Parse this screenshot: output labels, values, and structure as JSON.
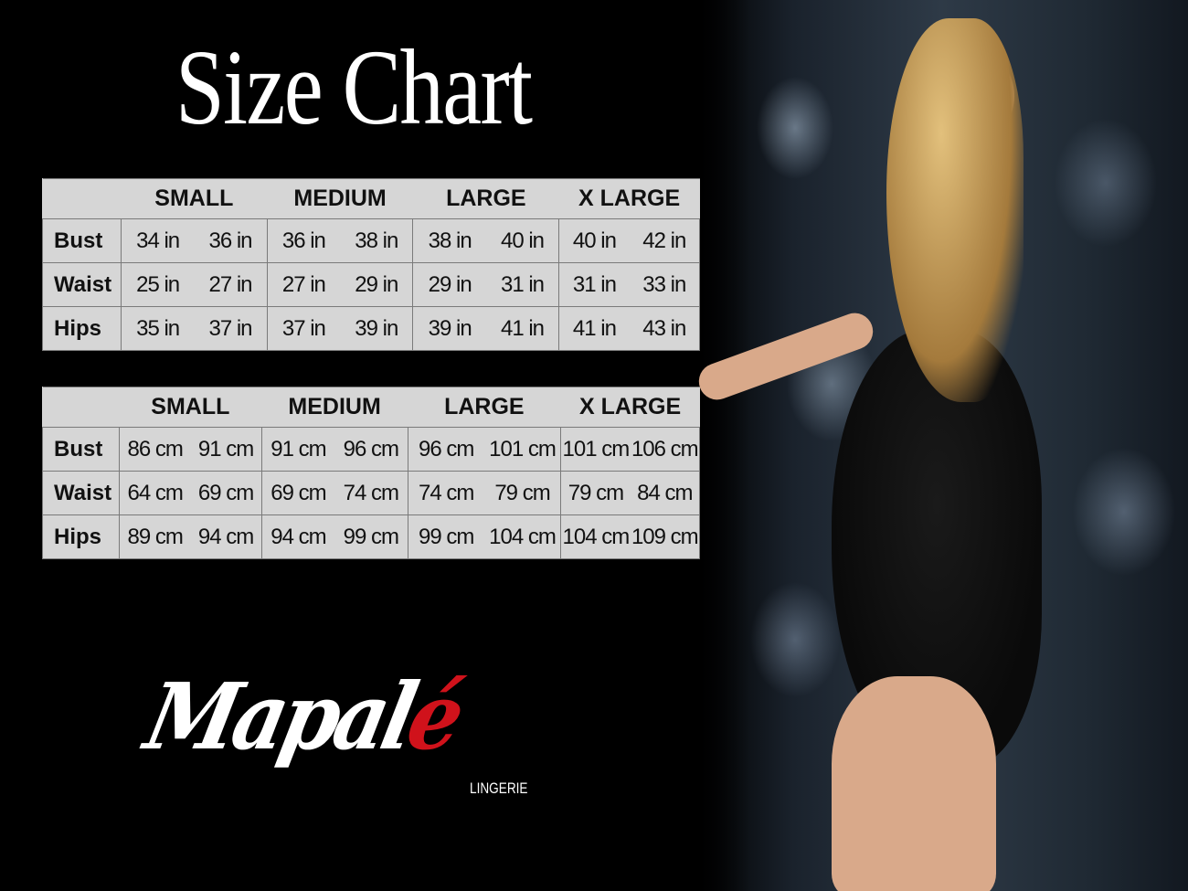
{
  "title": "Size Chart",
  "tables": [
    {
      "unit": "in",
      "sizes": [
        "SMALL",
        "MEDIUM",
        "LARGE",
        "X LARGE"
      ],
      "rows": [
        {
          "label": "Bust",
          "values": [
            "34 in",
            "36 in",
            "36 in",
            "38 in",
            "38 in",
            "40 in",
            "40 in",
            "42 in"
          ]
        },
        {
          "label": "Waist",
          "values": [
            "25 in",
            "27 in",
            "27 in",
            "29 in",
            "29 in",
            "31 in",
            "31 in",
            "33 in"
          ]
        },
        {
          "label": "Hips",
          "values": [
            "35 in",
            "37 in",
            "37 in",
            "39 in",
            "39 in",
            "41 in",
            "41 in",
            "43 in"
          ]
        }
      ]
    },
    {
      "unit": "cm",
      "sizes": [
        "SMALL",
        "MEDIUM",
        "LARGE",
        "X LARGE"
      ],
      "rows": [
        {
          "label": "Bust",
          "values": [
            "86 cm",
            "91 cm",
            "91 cm",
            "96 cm",
            "96 cm",
            "101 cm",
            "101 cm",
            "106 cm"
          ]
        },
        {
          "label": "Waist",
          "values": [
            "64 cm",
            "69 cm",
            "69 cm",
            "74 cm",
            "74 cm",
            "79 cm",
            "79 cm",
            "84 cm"
          ]
        },
        {
          "label": "Hips",
          "values": [
            "89 cm",
            "94 cm",
            "94 cm",
            "99 cm",
            "99 cm",
            "104 cm",
            "104 cm",
            "109 cm"
          ]
        }
      ]
    }
  ],
  "brand": {
    "name_main": "Mapal",
    "name_accent": "é",
    "subtitle": "LINGERIE",
    "accent_color": "#d0121b"
  },
  "colors": {
    "background": "#000000",
    "table_bg": "#d6d6d6"
  }
}
